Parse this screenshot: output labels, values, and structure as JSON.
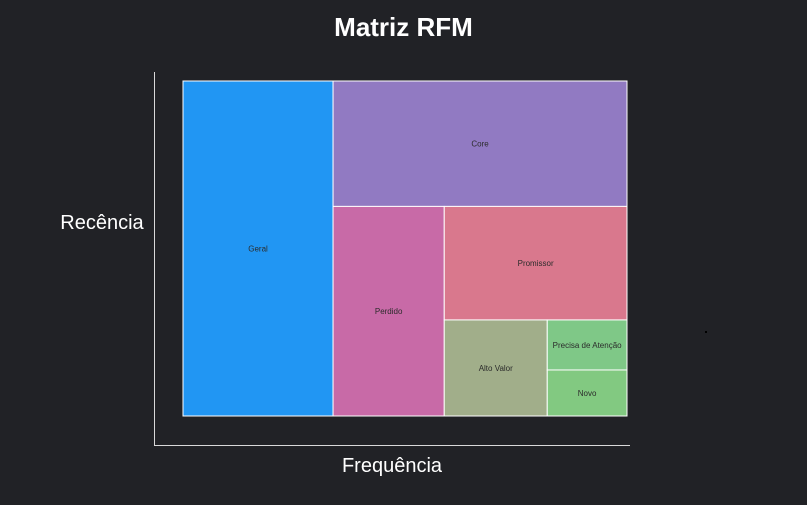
{
  "chart_data": {
    "type": "treemap",
    "title": "Matriz RFM",
    "xlabel": "Frequência",
    "ylabel": "Recência",
    "segments": [
      {
        "label": "Geral",
        "value": 0.315,
        "color": "#2196f3"
      },
      {
        "label": "Core",
        "value": 0.231,
        "color": "#917ac2"
      },
      {
        "label": "Perdido",
        "value": 0.146,
        "color": "#c86aa7"
      },
      {
        "label": "Promissor",
        "value": 0.13,
        "color": "#d9788d"
      },
      {
        "label": "Alto Valor",
        "value": 0.062,
        "color": "#a1ae8a"
      },
      {
        "label": "Precisa de Atenção",
        "value": 0.025,
        "color": "#7fc887"
      },
      {
        "label": "Novo",
        "value": 0.023,
        "color": "#82c981"
      }
    ]
  }
}
